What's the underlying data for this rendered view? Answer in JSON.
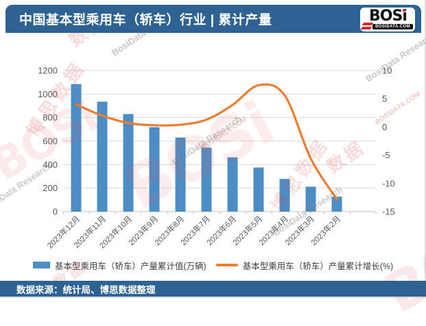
{
  "header": {
    "title": "中国基本型乘用车（轿车）行业 | 累计产量",
    "logo": {
      "brand": "BOS",
      "brand_i": "i",
      "domain": "BOSIDATA.COM"
    }
  },
  "footer": {
    "source_label": "数据来源：统计局、博思数据整理"
  },
  "watermarks": {
    "brand": "BOSi",
    "brand_cn": "博思数据",
    "research": "BosiData Research",
    "domain": "BOSIDATA.COM",
    "data_cn": "数据"
  },
  "colors": {
    "header_bg": "#2E6292",
    "bar": "#4D8DC6",
    "line": "#ED7D31",
    "axis_text": "#595959",
    "gridline": "#D9D9D9",
    "axis_line": "#BFBFBF",
    "watermark_red": "#E05A5A"
  },
  "chart_data": {
    "type": "bar+line combo",
    "title": "中国基本型乘用车（轿车）行业 | 累计产量",
    "categories": [
      "2023年12月",
      "2023年11月",
      "2023年10月",
      "2023年9月",
      "2023年8月",
      "2023年7月",
      "2023年6月",
      "2023年5月",
      "2023年4月",
      "2023年3月",
      "2023年2月"
    ],
    "series": [
      {
        "name": "基本型乘用车（轿车）产量累计值(万辆)",
        "type": "bar",
        "axis": "left",
        "values": [
          1085,
          935,
          830,
          718,
          630,
          545,
          462,
          375,
          278,
          212,
          127
        ]
      },
      {
        "name": "基本型乘用车（轿车）产量累计增长(%)",
        "type": "line",
        "axis": "right",
        "values": [
          4.0,
          2.0,
          0.7,
          0.3,
          0.4,
          1.3,
          3.9,
          7.4,
          5.6,
          -5.6,
          -12.8
        ]
      }
    ],
    "left_axis": {
      "min": 0,
      "max": 1200,
      "ticks": [
        0,
        200,
        400,
        600,
        800,
        1000,
        1200
      ]
    },
    "right_axis": {
      "min": -15,
      "max": 10,
      "ticks": [
        10,
        5,
        0,
        -5,
        -10,
        -15
      ]
    },
    "grid": true,
    "legend_position": "bottom",
    "x_labels_rotated": true,
    "extra_empty_slot": true
  }
}
